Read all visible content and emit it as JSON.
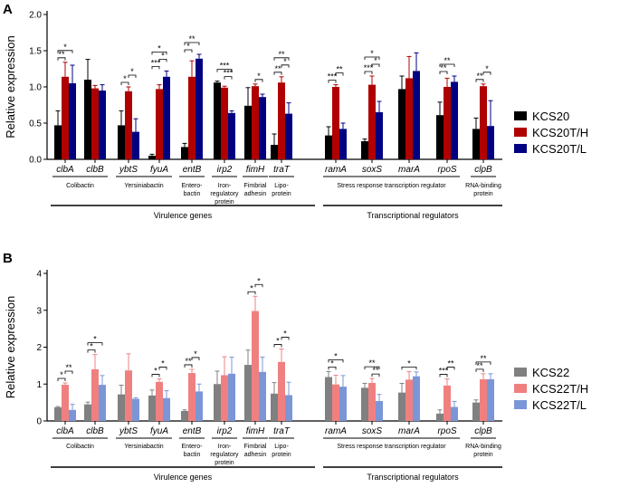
{
  "figure": {
    "panel_labels": [
      "A",
      "B"
    ]
  },
  "chart_data": [
    {
      "type": "bar",
      "panel": "A",
      "ylabel": "Relative expression",
      "ylim": [
        0,
        2.0
      ],
      "yticks": [
        "0.0",
        "0.5",
        "1.0",
        "1.5",
        "2.0"
      ],
      "yticks_values": [
        0,
        0.5,
        1.0,
        1.5,
        2.0
      ],
      "categories": [
        "clbA",
        "clbB",
        "ybtS",
        "fyuA",
        "entB",
        "irp2",
        "fimH",
        "traT",
        "ramA",
        "soxS",
        "marA",
        "rpoS",
        "clpB"
      ],
      "series": [
        {
          "name": "KCS20",
          "color": "#000000",
          "values": [
            0.47,
            1.1,
            0.47,
            0.05,
            0.17,
            1.06,
            0.74,
            0.2,
            0.33,
            0.25,
            0.97,
            0.61,
            0.42
          ],
          "errors": [
            0.2,
            0.28,
            0.2,
            0.02,
            0.05,
            0.02,
            0.25,
            0.15,
            0.12,
            0.03,
            0.18,
            0.18,
            0.15
          ]
        },
        {
          "name": "KCS20T/H",
          "color": "#b00000",
          "values": [
            1.14,
            0.98,
            0.94,
            0.97,
            1.14,
            0.99,
            1.01,
            1.06,
            1.0,
            1.03,
            1.12,
            1.0,
            1.01
          ],
          "errors": [
            0.2,
            0.04,
            0.06,
            0.06,
            0.22,
            0.02,
            0.03,
            0.08,
            0.03,
            0.12,
            0.3,
            0.12,
            0.03
          ]
        },
        {
          "name": "KCS20T/L",
          "color": "#000080",
          "values": [
            1.05,
            0.95,
            0.38,
            1.14,
            1.39,
            0.64,
            0.86,
            0.63,
            0.42,
            0.65,
            1.22,
            1.07,
            0.46
          ],
          "errors": [
            0.25,
            0.08,
            0.18,
            0.08,
            0.06,
            0.03,
            0.04,
            0.15,
            0.08,
            0.15,
            0.25,
            0.08,
            0.35
          ]
        }
      ],
      "significance": [
        {
          "gene": 0,
          "pairs": [
            [
              0,
              1,
              "**"
            ],
            [
              0,
              2,
              "*"
            ]
          ]
        },
        {
          "gene": 2,
          "pairs": [
            [
              0,
              1,
              "*"
            ],
            [
              1,
              2,
              "*"
            ]
          ]
        },
        {
          "gene": 3,
          "pairs": [
            [
              0,
              1,
              "***"
            ],
            [
              1,
              2,
              "*"
            ],
            [
              0,
              2,
              "*"
            ]
          ]
        },
        {
          "gene": 4,
          "pairs": [
            [
              0,
              1,
              "*"
            ],
            [
              0,
              2,
              "**"
            ]
          ]
        },
        {
          "gene": 5,
          "pairs": [
            [
              1,
              2,
              "***"
            ],
            [
              0,
              2,
              "***"
            ]
          ]
        },
        {
          "gene": 6,
          "pairs": [
            [
              1,
              2,
              "*"
            ]
          ]
        },
        {
          "gene": 7,
          "pairs": [
            [
              0,
              1,
              "**"
            ],
            [
              1,
              2,
              "*"
            ],
            [
              0,
              2,
              "**"
            ]
          ]
        },
        {
          "gene": 8,
          "pairs": [
            [
              0,
              1,
              "***"
            ],
            [
              1,
              2,
              "**"
            ]
          ]
        },
        {
          "gene": 9,
          "pairs": [
            [
              0,
              1,
              "***"
            ],
            [
              1,
              2,
              "*"
            ],
            [
              0,
              2,
              "*"
            ]
          ]
        },
        {
          "gene": 11,
          "pairs": [
            [
              0,
              1,
              "**"
            ],
            [
              0,
              2,
              "**"
            ]
          ]
        },
        {
          "gene": 12,
          "pairs": [
            [
              0,
              1,
              "**"
            ],
            [
              1,
              2,
              "*"
            ]
          ]
        }
      ],
      "legend": [
        "KCS20",
        "KCS20T/H",
        "KCS20T/L"
      ]
    },
    {
      "type": "bar",
      "panel": "B",
      "ylabel": "Relative expression",
      "ylim": [
        0,
        4
      ],
      "yticks": [
        "0",
        "1",
        "2",
        "3",
        "4"
      ],
      "yticks_values": [
        0,
        1,
        2,
        3,
        4
      ],
      "categories": [
        "clbA",
        "clbB",
        "ybtS",
        "fyuA",
        "entB",
        "irp2",
        "fimH",
        "traT",
        "ramA",
        "soxS",
        "marA",
        "rpoS",
        "clpB"
      ],
      "series": [
        {
          "name": "KCS22",
          "color": "#808080",
          "values": [
            0.37,
            0.45,
            0.72,
            0.69,
            0.27,
            1.0,
            1.52,
            0.74,
            1.19,
            0.9,
            0.77,
            0.2,
            0.5
          ],
          "errors": [
            0.02,
            0.06,
            0.25,
            0.15,
            0.03,
            0.35,
            0.4,
            0.3,
            0.15,
            0.12,
            0.25,
            0.1,
            0.07
          ]
        },
        {
          "name": "KCS22T/H",
          "color": "#f08080",
          "values": [
            0.98,
            1.4,
            1.37,
            1.06,
            1.3,
            1.24,
            2.98,
            1.6,
            0.99,
            1.03,
            1.12,
            0.96,
            1.13
          ],
          "errors": [
            0.05,
            0.4,
            0.45,
            0.08,
            0.1,
            0.5,
            0.4,
            0.35,
            0.25,
            0.12,
            0.22,
            0.18,
            0.15
          ]
        },
        {
          "name": "KCS22T/L",
          "color": "#7b96d6",
          "values": [
            0.3,
            0.98,
            0.6,
            0.62,
            0.8,
            1.28,
            1.33,
            0.7,
            0.93,
            0.54,
            1.21,
            0.38,
            1.13
          ],
          "errors": [
            0.15,
            0.25,
            0.03,
            0.2,
            0.2,
            0.45,
            0.4,
            0.35,
            0.3,
            0.18,
            0.12,
            0.15,
            0.15
          ]
        }
      ],
      "significance": [
        {
          "gene": 0,
          "pairs": [
            [
              0,
              1,
              "*"
            ],
            [
              1,
              2,
              "**"
            ]
          ]
        },
        {
          "gene": 1,
          "pairs": [
            [
              0,
              1,
              "*"
            ],
            [
              0,
              2,
              "*"
            ]
          ]
        },
        {
          "gene": 3,
          "pairs": [
            [
              0,
              1,
              "*"
            ],
            [
              1,
              2,
              "*"
            ]
          ]
        },
        {
          "gene": 4,
          "pairs": [
            [
              0,
              1,
              "**"
            ],
            [
              1,
              2,
              "*"
            ]
          ]
        },
        {
          "gene": 6,
          "pairs": [
            [
              0,
              1,
              "*"
            ],
            [
              1,
              2,
              "*"
            ]
          ]
        },
        {
          "gene": 7,
          "pairs": [
            [
              0,
              1,
              "*"
            ],
            [
              1,
              2,
              "*"
            ]
          ]
        },
        {
          "gene": 8,
          "pairs": [
            [
              0,
              1,
              "*"
            ],
            [
              0,
              2,
              "*"
            ]
          ]
        },
        {
          "gene": 9,
          "pairs": [
            [
              1,
              2,
              "**"
            ],
            [
              0,
              2,
              "**"
            ]
          ]
        },
        {
          "gene": 10,
          "pairs": [
            [
              0,
              2,
              "*"
            ]
          ]
        },
        {
          "gene": 11,
          "pairs": [
            [
              0,
              1,
              "***"
            ],
            [
              1,
              2,
              "**"
            ]
          ]
        },
        {
          "gene": 12,
          "pairs": [
            [
              0,
              1,
              "**"
            ],
            [
              0,
              2,
              "**"
            ]
          ]
        }
      ],
      "legend": [
        "KCS22",
        "KCS22T/H",
        "KCS22T/L"
      ]
    }
  ],
  "groups": [
    {
      "label": "Colibactin",
      "span": [
        0,
        1
      ]
    },
    {
      "label": "Yersiniabactin",
      "span": [
        2,
        3
      ]
    },
    {
      "label": "Entero-\nbactin",
      "span": [
        4,
        4
      ]
    },
    {
      "label": "Iron-\nregulatory\nprotein",
      "span": [
        5,
        5
      ]
    },
    {
      "label": "Fimbrial\nadhesin",
      "span": [
        6,
        6
      ]
    },
    {
      "label": "Lipo-\nprotein",
      "span": [
        7,
        7
      ]
    },
    {
      "label": "Stress response transcription regulator",
      "span": [
        8,
        11
      ]
    },
    {
      "label": "RNA-binding\nprotein",
      "span": [
        12,
        12
      ]
    }
  ],
  "classes": [
    {
      "label": "Virulence genes",
      "span": [
        0,
        7
      ]
    },
    {
      "label": "Transcriptional regulators",
      "span": [
        8,
        12
      ]
    }
  ]
}
